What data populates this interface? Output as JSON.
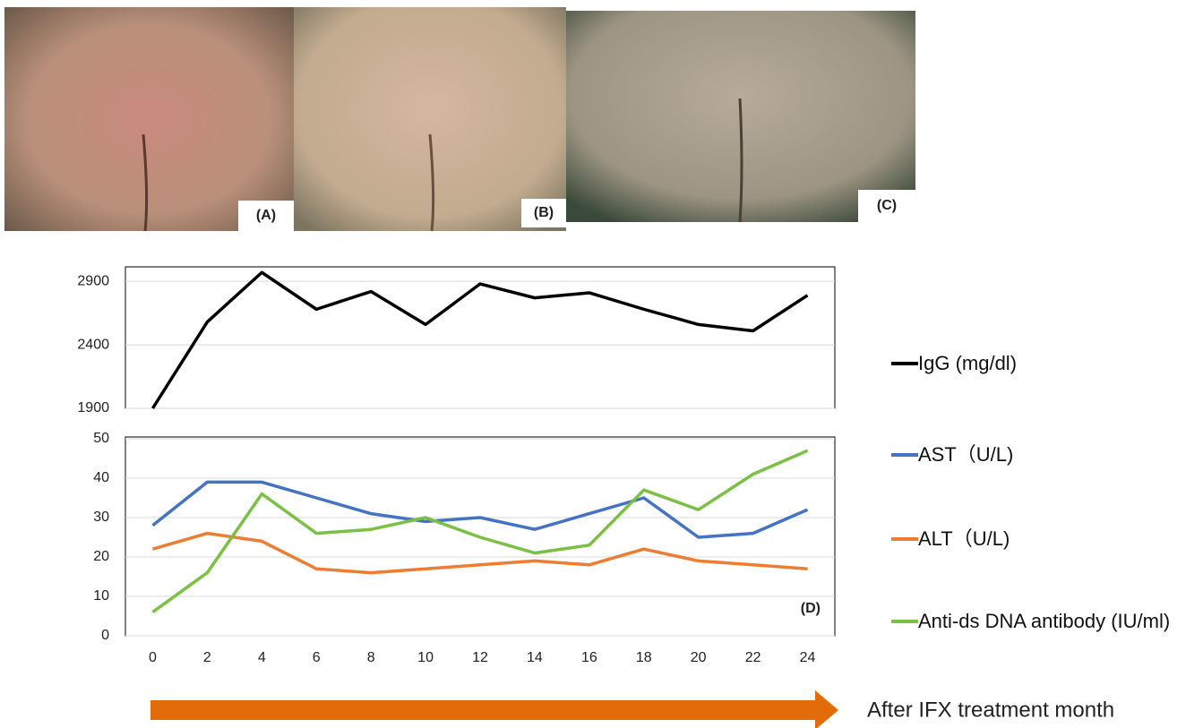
{
  "panels": [
    {
      "label": "(A)"
    },
    {
      "label": "(B)"
    },
    {
      "label": "(C)"
    }
  ],
  "chart_data": [
    {
      "type": "line",
      "x": [
        0,
        2,
        4,
        6,
        8,
        10,
        12,
        14,
        16,
        18,
        20,
        22,
        24
      ],
      "xlim": [
        -1,
        25
      ],
      "ylim": [
        1900,
        3000
      ],
      "yticks": [
        1900,
        2400,
        2900
      ],
      "grid": true,
      "series": [
        {
          "name": "IgG (mg/dl)",
          "color": "#000000",
          "values": [
            1900,
            2580,
            2970,
            2680,
            2820,
            2560,
            2880,
            2770,
            2810,
            2680,
            2560,
            2510,
            2790
          ]
        }
      ]
    },
    {
      "type": "line",
      "x": [
        0,
        2,
        4,
        6,
        8,
        10,
        12,
        14,
        16,
        18,
        20,
        22,
        24
      ],
      "xlim": [
        -1,
        25
      ],
      "xticks": [
        0,
        2,
        4,
        6,
        8,
        10,
        12,
        14,
        16,
        18,
        20,
        22,
        24
      ],
      "ylim": [
        0,
        50
      ],
      "yticks": [
        0,
        10,
        20,
        30,
        40,
        50
      ],
      "grid": true,
      "annotation": "(D)",
      "xlabel": "After IFX treatment month",
      "series": [
        {
          "name": "AST（U/L)",
          "color": "#4472c4",
          "values": [
            28,
            39,
            39,
            35,
            31,
            29,
            30,
            27,
            31,
            35,
            25,
            26,
            32
          ]
        },
        {
          "name": "ALT（U/L)",
          "color": "#ed7d31",
          "values": [
            22,
            26,
            24,
            17,
            16,
            17,
            18,
            19,
            18,
            22,
            19,
            18,
            17
          ]
        },
        {
          "name": "Anti-ds DNA antibody (IU/ml)",
          "color": "#7ac143",
          "values": [
            6,
            16,
            36,
            26,
            27,
            30,
            25,
            21,
            23,
            37,
            32,
            41,
            47
          ]
        }
      ]
    }
  ]
}
